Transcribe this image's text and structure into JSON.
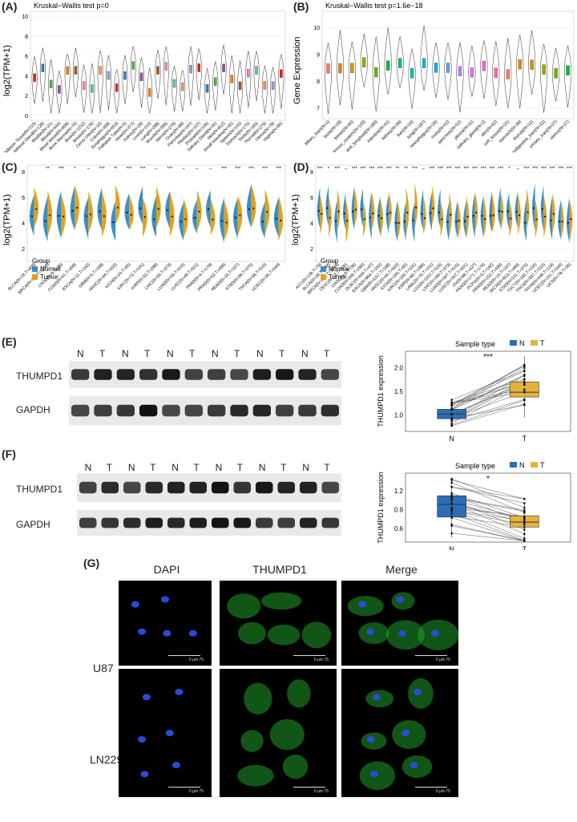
{
  "panels": {
    "A": {
      "label": "(A)",
      "test": "Kruskal−Wallis test p=0",
      "ylabel": "log2(TPM+1)",
      "yticks": [
        "0",
        "2",
        "4",
        "6",
        "8",
        "10"
      ],
      "groups": [
        "Adipose Tissue(N=515)",
        "Adrenal Gland(N=128)",
        "Bladder(N=21)",
        "Blood(N=444)",
        "Blood Vessel(N=606)",
        "Bone Marrow(N=70)",
        "Brain(N=1152)",
        "Breast(N=179)",
        "Cervix Uteri(N=10)",
        "Colon(N=308)",
        "Esophagus(N=653)",
        "Fallopian Tube(N=5)",
        "Heart(N=377)",
        "Kidney(N=28)",
        "Liver(N=110)",
        "Lung(N=288)",
        "Muscle(N=396)",
        "Nerve(N=278)",
        "Ovary(N=88)",
        "Pancreas(N=167)",
        "Pituitary(N=107)",
        "Prostate(N=106)",
        "Salivary Gland(N=55)",
        "Skin(N=812)",
        "Small Intestine(N=92)",
        "Spleen(N=100)",
        "Stomach(N=175)",
        "Testis(N=165)",
        "Thyroid(N=279)",
        "Uterus(N=78)",
        "Vagina(N=85)"
      ]
    },
    "B": {
      "label": "(B)",
      "test": "Kruskal−Wallis test p=1.6e−18",
      "ylabel": "Gene Expression",
      "yticks": [
        "7",
        "8",
        "9",
        "10"
      ],
      "groups": [
        "biliary_tract(N=1)",
        "bone(N=29)",
        "breast(N=60)",
        "central_nervous_system(N=103)",
        "haematopoietic_and_lymphoid(N=180)",
        "intestine(N=41)",
        "kidney(N=36)",
        "liver(N=24)",
        "lung(N=187)",
        "oesophagus(N=26)",
        "ovary(N=52)",
        "pancreas(N=52)",
        "pleura(N=11)",
        "salivary_gland(N=2)",
        "skin(N=62)",
        "soft_tissue(N=21)",
        "stomach(N=38)",
        "thyroid(N=12)",
        "upper_aerodigestive_tract(N=32)",
        "urinary_tract(N=27)",
        "uterus(N=27)"
      ]
    },
    "C": {
      "label": "(C)",
      "ylabel": "log2(TPM+1)",
      "yticks": [
        "2",
        "4",
        "6",
        "8"
      ],
      "legend_title": "Group",
      "legend": [
        "Normal",
        "Tumor"
      ],
      "groups": [
        "BLCA(N=19,T=408)",
        "BRCA(N=113,T=1098)",
        "CHOL(N=9,T=36)",
        "COAD(N=41,T=458)",
        "ESCA(N=11,T=162)",
        "GBM(N=5,T=168)",
        "HNSC(N=44,T=502)",
        "KICH(N=24,T=65)",
        "KIRC(N=72,T=531)",
        "KIRP(N=32,T=289)",
        "LIHC(N=50,T=373)",
        "LUAD(N=59,T=515)",
        "LUSC(N=49,T=501)",
        "PAAD(N=4,T=178)",
        "PRAD(N=52,T=496)",
        "READ(N=10,T=167)",
        "STAD(N=36,T=375)",
        "THCA(N=58,T=510)",
        "UCEC(N=35,T=544)"
      ],
      "sig": [
        "",
        "**",
        "***",
        "*",
        "–",
        "***",
        "**",
        "***",
        "***",
        "–",
        "***",
        "–",
        "–",
        "–",
        "***",
        "***",
        "***",
        "***",
        "***"
      ]
    },
    "D": {
      "label": "(D)",
      "ylabel": "log2(TPM+1)",
      "yticks": [
        "2",
        "4",
        "6",
        "8"
      ],
      "legend_title": "Group",
      "legend": [
        "Normal",
        "Tumor"
      ],
      "groups": [
        "ACC(N=128,T=79)",
        "BLCA(N=28,T=408)",
        "BRCA(N=292,T=1098)",
        "CESC(N=13,T=306)",
        "CHOL(N=9,T=36)",
        "COAD(N=349,T=290)",
        "DLBC(N=444,T=47)",
        "ESCA(N=664,T=162)",
        "GBM(N=1157,T=168)",
        "HNSC(N=44,T=502)",
        "KICH(N=100,T=65)",
        "KIRC(N=100,T=531)",
        "KIRP(N=60,T=289)",
        "LAML(N=70,T=151)",
        "LGG(N=1152,T=529)",
        "LIHC(N=160,T=373)",
        "LUAD(N=347,T=515)",
        "LUSC(N=347,T=501)",
        "OV(N=88,T=427)",
        "PAAD(N=171,T=179)",
        "PCPG(N=3,T=182)",
        "PRAD(N=152,T=496)",
        "READ(N=10,T=167)",
        "SKCM(N=813,T=469)",
        "STAD(N=211,T=375)",
        "TGCT(N=165,T=154)",
        "THCA(N=337,T=510)",
        "THYM(N=446,T=119)",
        "UCEC(N=101,T=544)",
        "UCS(N=78,T=56)"
      ],
      "sig": [
        "***",
        "*",
        "***",
        "–",
        "***",
        "***",
        "***",
        "***",
        "***",
        "**",
        "**",
        "***",
        "–",
        "***",
        "***",
        "***",
        "***",
        "***",
        "***",
        "***",
        "***",
        "***",
        "*",
        "–",
        "***",
        "***",
        "***",
        "***",
        "***",
        "***"
      ]
    },
    "E": {
      "label": "(E)",
      "lanes": [
        "N",
        "T",
        "N",
        "T",
        "N",
        "T",
        "N",
        "T",
        "N",
        "T",
        "N",
        "T"
      ],
      "bands": [
        "THUMPD1",
        "GAPDH"
      ],
      "legend_title": "Sample type",
      "legend": [
        "N",
        "T"
      ],
      "sig": "***",
      "ylabel": "THUMPD1 expression",
      "yticks": [
        "1.0",
        "1.5",
        "2.0"
      ],
      "xcats": [
        "N",
        "T"
      ]
    },
    "F": {
      "label": "(F)",
      "lanes": [
        "N",
        "T",
        "N",
        "T",
        "N",
        "T",
        "N",
        "T",
        "N",
        "T",
        "N",
        "T"
      ],
      "bands": [
        "THUMPD1",
        "GAPDH"
      ],
      "legend_title": "Sample type",
      "legend": [
        "N",
        "T"
      ],
      "sig": "*",
      "ylabel": "THUMPD1 expression",
      "yticks": [
        "0.6",
        "0.9",
        "1.2"
      ],
      "xcats": [
        "N",
        "T"
      ]
    },
    "G": {
      "label": "(G)",
      "columns": [
        "DAPI",
        "THUMPD1",
        "Merge"
      ],
      "rows": [
        "U87",
        "LN229"
      ],
      "scale_text": "0    μm    75"
    }
  },
  "colors": {
    "normal": "#3b8fc8",
    "tumor": "#e2a21e",
    "box_n": "#2a6fb5",
    "box_t": "#e6b23a"
  }
}
